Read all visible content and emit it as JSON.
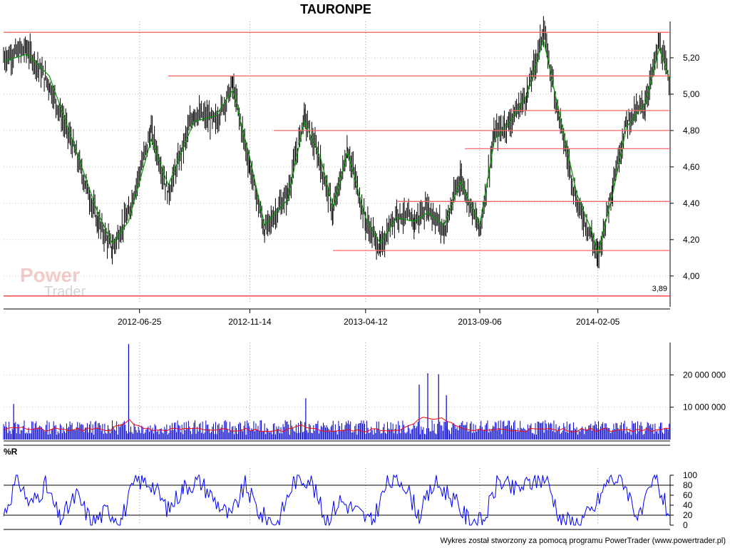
{
  "chart_data": [
    {
      "panel": "price",
      "type": "line",
      "title": "TAURONPE",
      "yticks": [
        "4,00",
        "4,20",
        "4,40",
        "4,60",
        "4,80",
        "5,00",
        "5,20"
      ],
      "ytick_values": [
        4.0,
        4.2,
        4.4,
        4.6,
        4.8,
        5.0,
        5.2
      ],
      "ylim": [
        3.85,
        5.4
      ],
      "xticks": [
        "2012-06-25",
        "2012-11-14",
        "2013-04-12",
        "2013-09-06",
        "2014-02-05"
      ],
      "xlim": [
        "2012-01-02",
        "2014-05-09"
      ],
      "series": [
        {
          "style": "ohlc-bars",
          "color": "#000000",
          "x": [
            "2012-01-02",
            "2012-02-01",
            "2012-03-01",
            "2012-04-02",
            "2012-05-02",
            "2012-05-21",
            "2012-06-11",
            "2012-07-10",
            "2012-08-01",
            "2012-09-03",
            "2012-10-01",
            "2012-10-23",
            "2012-11-14",
            "2012-12-03",
            "2013-01-02",
            "2013-01-23",
            "2013-02-13",
            "2013-03-01",
            "2013-03-20",
            "2013-04-12",
            "2013-05-01",
            "2013-05-22",
            "2013-06-14",
            "2013-07-01",
            "2013-07-22",
            "2013-08-12",
            "2013-09-06",
            "2013-09-25",
            "2013-10-15",
            "2013-11-06",
            "2013-11-27",
            "2013-12-16",
            "2014-01-09",
            "2014-01-28",
            "2014-02-05",
            "2014-02-24",
            "2014-03-14",
            "2014-04-07",
            "2014-04-25",
            "2014-05-09"
          ],
          "close": [
            5.2,
            5.25,
            5.05,
            4.7,
            4.3,
            4.15,
            4.35,
            4.8,
            4.45,
            4.9,
            4.85,
            5.05,
            4.6,
            4.25,
            4.45,
            4.88,
            4.62,
            4.35,
            4.7,
            4.3,
            4.15,
            4.35,
            4.3,
            4.38,
            4.25,
            4.55,
            4.25,
            4.78,
            4.85,
            5.0,
            5.35,
            4.9,
            4.4,
            4.22,
            4.1,
            4.5,
            4.85,
            4.95,
            5.28,
            5.05
          ]
        },
        {
          "style": "line",
          "name": "",
          "color": "#009900",
          "x": [
            "2012-01-02",
            "2012-02-01",
            "2012-03-01",
            "2012-04-02",
            "2012-05-02",
            "2012-05-21",
            "2012-06-11",
            "2012-07-10",
            "2012-08-01",
            "2012-09-03",
            "2012-10-01",
            "2012-10-23",
            "2012-11-14",
            "2012-12-03",
            "2013-01-02",
            "2013-01-23",
            "2013-02-13",
            "2013-03-01",
            "2013-03-20",
            "2013-04-12",
            "2013-05-01",
            "2013-05-22",
            "2013-06-14",
            "2013-07-01",
            "2013-07-22",
            "2013-08-12",
            "2013-09-06",
            "2013-09-25",
            "2013-10-15",
            "2013-11-06",
            "2013-11-27",
            "2013-12-16",
            "2014-01-09",
            "2014-01-28",
            "2014-02-05",
            "2014-02-24",
            "2014-03-14",
            "2014-04-07",
            "2014-04-25",
            "2014-05-09"
          ],
          "y": [
            5.18,
            5.22,
            5.1,
            4.72,
            4.35,
            4.18,
            4.3,
            4.75,
            4.5,
            4.85,
            4.88,
            5.02,
            4.65,
            4.28,
            4.42,
            4.85,
            4.65,
            4.38,
            4.68,
            4.32,
            4.18,
            4.32,
            4.3,
            4.35,
            4.28,
            4.52,
            4.28,
            4.75,
            4.85,
            5.0,
            5.3,
            4.92,
            4.45,
            4.25,
            4.12,
            4.45,
            4.82,
            4.95,
            5.25,
            5.08
          ]
        }
      ],
      "hlines": [
        {
          "y": 5.34,
          "from": "2012-01-02",
          "to": "2014-05-09",
          "color": "#ff6666"
        },
        {
          "y": 5.1,
          "from": "2012-08-01",
          "to": "2014-05-09",
          "color": "#ff6666"
        },
        {
          "y": 4.91,
          "from": "2013-10-15",
          "to": "2014-05-09",
          "color": "#ff6666"
        },
        {
          "y": 4.8,
          "from": "2012-12-15",
          "to": "2014-05-09",
          "color": "#ff6666"
        },
        {
          "y": 4.7,
          "from": "2013-08-18",
          "to": "2014-05-09",
          "color": "#ff6666"
        },
        {
          "y": 4.41,
          "from": "2013-05-22",
          "to": "2014-05-09",
          "color": "#ff6666"
        },
        {
          "y": 4.14,
          "from": "2013-03-01",
          "to": "2014-05-09",
          "color": "#ff6666"
        },
        {
          "y": 3.89,
          "from": "2012-01-02",
          "to": "2014-05-09",
          "color": "#ff3333",
          "label": "3,89"
        }
      ]
    },
    {
      "panel": "volume",
      "type": "bar",
      "yticks": [
        "10 000 000",
        "20 000 000"
      ],
      "ytick_values": [
        10000000,
        20000000
      ],
      "ylim": [
        0,
        30000000
      ],
      "spikes": [
        {
          "x": "2012-06-11",
          "value": 29500000
        },
        {
          "x": "2013-01-25",
          "value": 12800000
        },
        {
          "x": "2013-06-20",
          "value": 17000000
        },
        {
          "x": "2013-07-01",
          "value": 20500000
        },
        {
          "x": "2013-07-15",
          "value": 20200000
        },
        {
          "x": "2013-07-25",
          "value": 13700000
        },
        {
          "x": "2012-01-15",
          "value": 11000000
        }
      ],
      "colors": {
        "bars": "#0000cc",
        "average": "#ff0000"
      }
    },
    {
      "panel": "williams-r",
      "type": "line",
      "label": "%R",
      "yticks": [
        "0",
        "20",
        "40",
        "60",
        "80",
        "100"
      ],
      "ytick_values": [
        0,
        20,
        40,
        60,
        80,
        100
      ],
      "ylim": [
        0,
        100
      ],
      "reference_lines": [
        20,
        80
      ],
      "series": [
        {
          "name": "",
          "color": "#0000ff",
          "x": [
            "2012-01-02",
            "2012-01-20",
            "2012-02-05",
            "2012-02-25",
            "2012-03-15",
            "2012-04-05",
            "2012-04-25",
            "2012-05-15",
            "2012-06-01",
            "2012-06-20",
            "2012-07-10",
            "2012-08-01",
            "2012-08-20",
            "2012-09-10",
            "2012-09-30",
            "2012-10-20",
            "2012-11-08",
            "2012-11-28",
            "2012-12-20",
            "2013-01-10",
            "2013-01-30",
            "2013-02-20",
            "2013-03-10",
            "2013-03-30",
            "2013-04-20",
            "2013-05-10",
            "2013-05-30",
            "2013-06-20",
            "2013-07-10",
            "2013-07-30",
            "2013-08-20",
            "2013-09-10",
            "2013-09-30",
            "2013-10-20",
            "2013-11-10",
            "2013-11-30",
            "2013-12-20",
            "2014-01-10",
            "2014-01-30",
            "2014-02-20",
            "2014-03-10",
            "2014-03-30",
            "2014-04-20",
            "2014-05-09"
          ],
          "y": [
            20,
            95,
            40,
            80,
            10,
            60,
            5,
            30,
            10,
            90,
            85,
            30,
            75,
            90,
            50,
            15,
            80,
            20,
            5,
            90,
            95,
            10,
            50,
            30,
            5,
            85,
            90,
            20,
            85,
            60,
            15,
            5,
            90,
            70,
            85,
            95,
            10,
            5,
            30,
            95,
            90,
            10,
            95,
            15
          ]
        }
      ]
    }
  ],
  "footer": {
    "text": "Wykres został stworzony za pomocą programu PowerTrader (www.powertrader.pl)"
  },
  "watermark": {
    "line1": "Power",
    "line2": "Trader"
  }
}
